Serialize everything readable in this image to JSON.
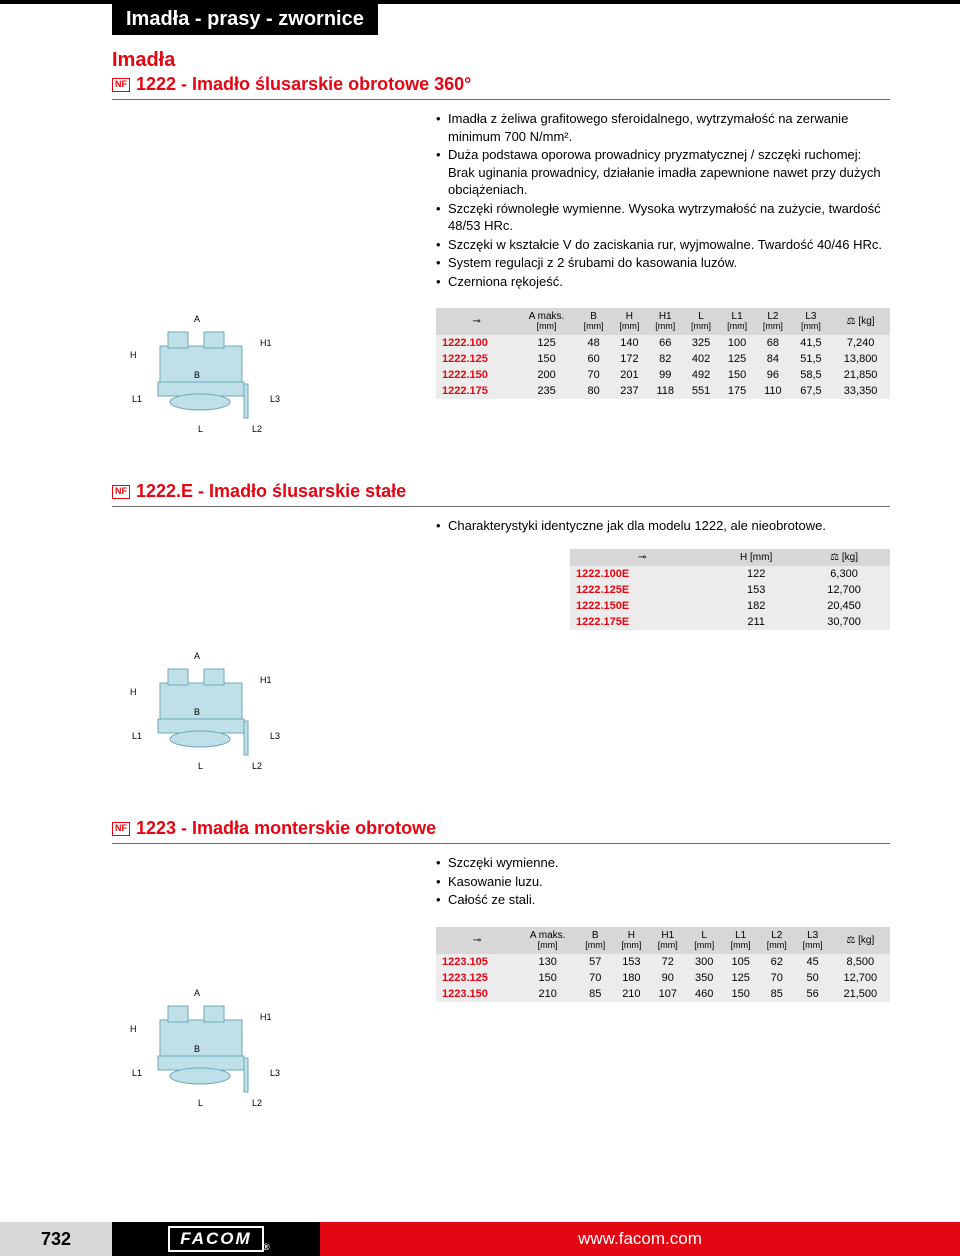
{
  "category": "Imadła - prasy - zwornice",
  "section1": {
    "group_title": "Imadła",
    "heading": "1222 - Imadło ślusarskie obrotowe 360°",
    "bullets": [
      "Imadła z żeliwa grafitowego sferoidalnego, wytrzymałość na zerwanie minimum 700 N/mm².",
      "Duża podstawa oporowa prowadnicy pryzmatycznej / szczęki ruchomej: Brak uginania prowadnicy, działanie imadła zapewnione nawet przy dużych obciążeniach.",
      "Szczęki równoległe wymienne. Wysoka wytrzymałość na zużycie, twardość 48/53 HRc.",
      "Szczęki w kształcie V do zaciskania rur, wyjmowalne. Twardość 40/46 HRc.",
      "System regulacji z 2 śrubami do kasowania luzów.",
      "Czerniona rękojeść."
    ]
  },
  "diagram_labels": {
    "a": "A",
    "b": "B",
    "h": "H",
    "h1": "H1",
    "l": "L",
    "l1": "L1",
    "l2": "L2",
    "l3": "L3"
  },
  "table1": {
    "headers": {
      "amax": "A maks.",
      "b": "B",
      "h": "H",
      "h1": "H1",
      "l": "L",
      "l1": "L1",
      "l2": "L2",
      "l3": "L3",
      "unit": "[mm]",
      "weight": "[kg]"
    },
    "rows": [
      {
        "ref": "1222.100",
        "a": "125",
        "b": "48",
        "h": "140",
        "h1": "66",
        "l": "325",
        "l1": "100",
        "l2": "68",
        "l3": "41,5",
        "kg": "7,240"
      },
      {
        "ref": "1222.125",
        "a": "150",
        "b": "60",
        "h": "172",
        "h1": "82",
        "l": "402",
        "l1": "125",
        "l2": "84",
        "l3": "51,5",
        "kg": "13,800"
      },
      {
        "ref": "1222.150",
        "a": "200",
        "b": "70",
        "h": "201",
        "h1": "99",
        "l": "492",
        "l1": "150",
        "l2": "96",
        "l3": "58,5",
        "kg": "21,850"
      },
      {
        "ref": "1222.175",
        "a": "235",
        "b": "80",
        "h": "237",
        "h1": "118",
        "l": "551",
        "l1": "175",
        "l2": "110",
        "l3": "67,5",
        "kg": "33,350"
      }
    ]
  },
  "section2": {
    "heading": "1222.E - Imadło ślusarskie stałe",
    "bullets": [
      "Charakterystyki identyczne jak dla modelu 1222, ale nieobrotowe."
    ]
  },
  "table2": {
    "headers": {
      "h": "H [mm]",
      "weight": "[kg]"
    },
    "rows": [
      {
        "ref": "1222.100E",
        "h": "122",
        "kg": "6,300"
      },
      {
        "ref": "1222.125E",
        "h": "153",
        "kg": "12,700"
      },
      {
        "ref": "1222.150E",
        "h": "182",
        "kg": "20,450"
      },
      {
        "ref": "1222.175E",
        "h": "211",
        "kg": "30,700"
      }
    ]
  },
  "section3": {
    "heading": "1223 - Imadła monterskie obrotowe",
    "bullets": [
      "Szczęki wymienne.",
      "Kasowanie luzu.",
      "Całość ze stali."
    ]
  },
  "table3": {
    "rows": [
      {
        "ref": "1223.105",
        "a": "130",
        "b": "57",
        "h": "153",
        "h1": "72",
        "l": "300",
        "l1": "105",
        "l2": "62",
        "l3": "45",
        "kg": "8,500"
      },
      {
        "ref": "1223.125",
        "a": "150",
        "b": "70",
        "h": "180",
        "h1": "90",
        "l": "350",
        "l1": "125",
        "l2": "70",
        "l3": "50",
        "kg": "12,700"
      },
      {
        "ref": "1223.150",
        "a": "210",
        "b": "85",
        "h": "210",
        "h1": "107",
        "l": "460",
        "l1": "150",
        "l2": "85",
        "l3": "56",
        "kg": "21,500"
      }
    ]
  },
  "footer": {
    "page": "732",
    "brand": "FACOM",
    "url": "www.facom.com"
  },
  "icons": {
    "nf": "NF",
    "weight_sym": "⚖"
  }
}
